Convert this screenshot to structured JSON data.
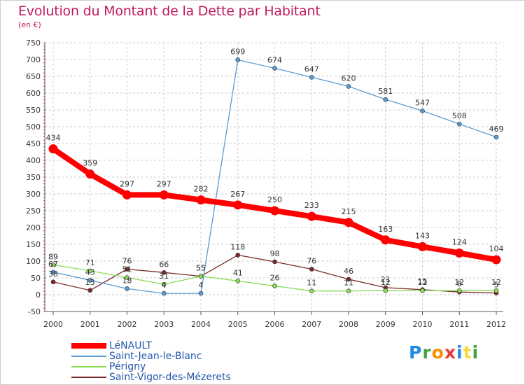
{
  "title": "Evolution du Montant de la Dette par Habitant",
  "unit": "(en €)",
  "chart_data": {
    "type": "line",
    "title": "Evolution du Montant de la Dette par Habitant",
    "ylabel": "(en €)",
    "x": [
      "2000",
      "2001",
      "2002",
      "2003",
      "2004",
      "2005",
      "2006",
      "2007",
      "2008",
      "2009",
      "2010",
      "2011",
      "2012"
    ],
    "ylim": [
      -50,
      750
    ],
    "yticks": [
      -50,
      0,
      50,
      100,
      150,
      200,
      250,
      300,
      350,
      400,
      450,
      500,
      550,
      600,
      650,
      700,
      750
    ],
    "grid": true,
    "legend_position": "bottom-left",
    "series": [
      {
        "name": "LéNAULT",
        "color": "#ff0000",
        "values": [
          434,
          359,
          297,
          297,
          282,
          267,
          250,
          233,
          215,
          163,
          143,
          124,
          104
        ]
      },
      {
        "name": "Saint-Jean-le-Blanc",
        "color": "#5b9bd5",
        "values": [
          67,
          43,
          18,
          4,
          4,
          699,
          674,
          647,
          620,
          581,
          547,
          508,
          469
        ]
      },
      {
        "name": "Périgny",
        "color": "#88dd55",
        "values": [
          89,
          71,
          51,
          31,
          55,
          41,
          26,
          11,
          11,
          12,
          12,
          12,
          12
        ]
      },
      {
        "name": "Saint-Vigor-des-Mézerets",
        "color": "#7a2a2a",
        "values": [
          38,
          13,
          76,
          66,
          55,
          118,
          98,
          76,
          46,
          21,
          15,
          8,
          5
        ]
      }
    ]
  },
  "logo": {
    "letters": [
      "P",
      "r",
      "o",
      "x",
      "i",
      "t",
      "i"
    ],
    "colors": [
      "#1e88e5",
      "#43a047",
      "#fb8c00",
      "#e53935",
      "#1e88e5",
      "#fdd835",
      "#43a047"
    ]
  }
}
